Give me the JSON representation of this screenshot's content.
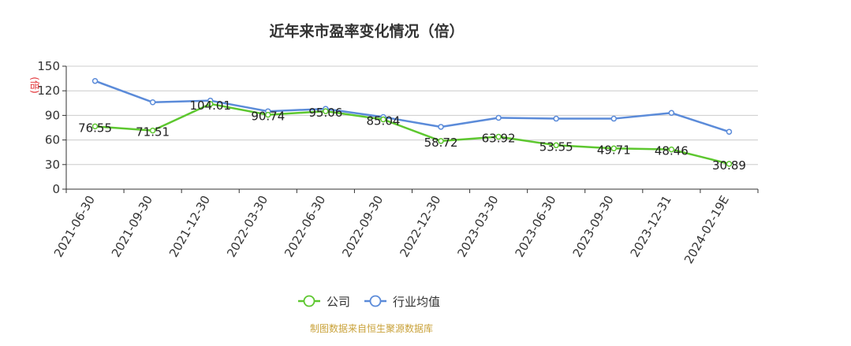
{
  "chart_data": {
    "type": "line",
    "title": "近年来市盈率变化情况（倍）",
    "ylabel": "(倍)",
    "ylim": [
      0,
      150
    ],
    "yticks": [
      0,
      30,
      60,
      90,
      120,
      150
    ],
    "categories": [
      "2021-06-30",
      "2021-09-30",
      "2021-12-30",
      "2022-03-30",
      "2022-06-30",
      "2022-09-30",
      "2022-12-30",
      "2023-03-30",
      "2023-06-30",
      "2023-09-30",
      "2023-12-31",
      "2024-02-19E"
    ],
    "series": [
      {
        "name": "公司",
        "color": "#5dc72f",
        "values": [
          76.55,
          71.51,
          104.01,
          90.74,
          95.06,
          85.04,
          58.72,
          63.92,
          53.55,
          49.71,
          48.46,
          30.89
        ],
        "labels": [
          "76.55",
          "71.51",
          "104.01",
          "90.74",
          "95.06",
          "85.04",
          "58.72",
          "63.92",
          "53.55",
          "49.71",
          "48.46",
          "30.89"
        ]
      },
      {
        "name": "行业均值",
        "color": "#5b8bd9",
        "values": [
          132,
          106,
          108,
          95,
          98,
          88,
          76,
          87,
          86,
          86,
          93,
          70
        ]
      }
    ],
    "grid": true,
    "legend": "bottom-center",
    "source": "制图数据来自恒生聚源数据库"
  }
}
